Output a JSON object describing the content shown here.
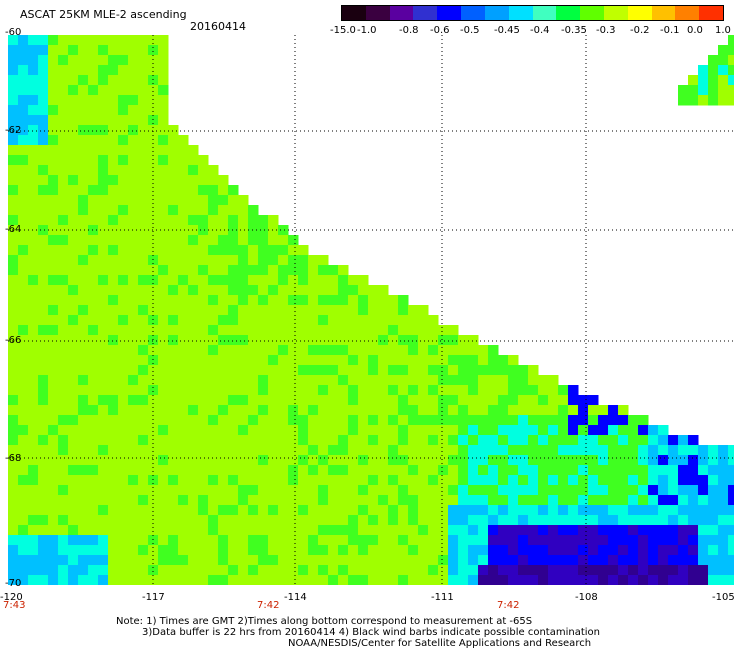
{
  "header": {
    "title": "ASCAT 25KM MLE-2 ascending",
    "date": "20160414"
  },
  "colorbar": {
    "labels": [
      "-15.0",
      "-1.0",
      "-0.8",
      "-0.6",
      "-0.5",
      "-0.45",
      "-0.4",
      "-0.35",
      "-0.3",
      "-0.2",
      "-0.1",
      "0.0",
      "1.0"
    ],
    "colors": [
      "#1a0010",
      "#3a0040",
      "#5a00a0",
      "#3030d0",
      "#0000ff",
      "#0060ff",
      "#00a0ff",
      "#00e0ff",
      "#40ffc0",
      "#00ff40",
      "#60ff00",
      "#c0ff00",
      "#ffff00",
      "#ffc000",
      "#ff8000",
      "#ff3000"
    ]
  },
  "map": {
    "lat_ticks": [
      "-60",
      "-62",
      "-64",
      "-66",
      "-68",
      "-70"
    ],
    "lon_ticks": [
      "-120",
      "-117",
      "-114",
      "-111",
      "-108",
      "-105"
    ],
    "time_labels": [
      "7:43",
      "7:42",
      "7:42"
    ],
    "lat_range": [
      -70,
      -60
    ],
    "lon_range": [
      -120,
      -105
    ],
    "colors": {
      "yellowgreen": "#a0ff00",
      "green": "#40ff20",
      "cyan": "#00ffe0",
      "lightblue": "#00c0ff",
      "blue": "#0000ff",
      "darkblue": "#3000c0",
      "purple": "#300090",
      "noData": "#ffffff"
    }
  },
  "notes": [
    "Note: 1) Times are GMT 2)Times along bottom correspond to measurement at -65S",
    "3)Data buffer is 22 hrs from 20160414 4) Black wind barbs indicate possible contamination",
    "NOAA/NESDIS/Center for Satellite Applications and Research"
  ]
}
